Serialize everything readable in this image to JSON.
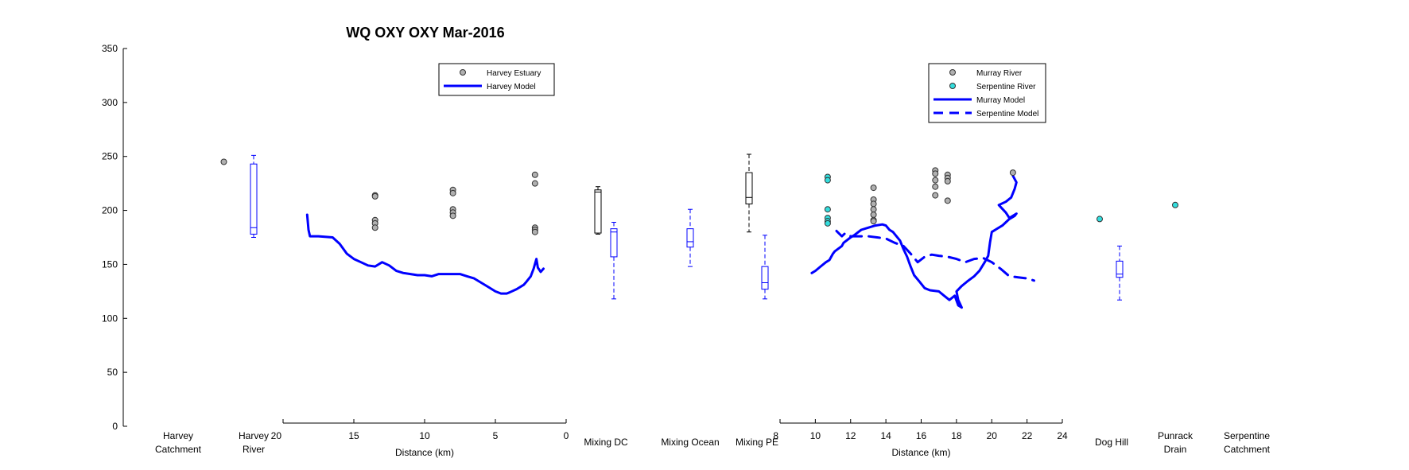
{
  "chart_data": {
    "type": "mixed",
    "title": "WQ OXY OXY Mar-2016",
    "y_axis": {
      "ylim": [
        0,
        350
      ],
      "ticks": [
        0,
        50,
        100,
        150,
        200,
        250,
        300,
        350
      ]
    },
    "categories": [
      {
        "key": "harvey_catchment",
        "label_lines": [
          "Harvey",
          "Catchment"
        ]
      },
      {
        "key": "harvey_river",
        "label_lines": [
          "Harvey",
          "River"
        ]
      },
      {
        "key": "mixing_dc",
        "label_lines": [
          "Mixing DC"
        ]
      },
      {
        "key": "mixing_ocean",
        "label_lines": [
          "Mixing Ocean"
        ]
      },
      {
        "key": "mixing_pe",
        "label_lines": [
          "Mixing PE"
        ]
      },
      {
        "key": "dog_hill",
        "label_lines": [
          "Dog Hill"
        ]
      },
      {
        "key": "punrack_drain",
        "label_lines": [
          "Punrack",
          "Drain"
        ]
      },
      {
        "key": "serpentine_catchment",
        "label_lines": [
          "Serpentine",
          "Catchment"
        ]
      }
    ],
    "category_points": {
      "harvey_river": [
        245
      ],
      "dog_hill": [
        192
      ],
      "punrack_drain": [
        205
      ]
    },
    "boxplots": [
      {
        "category": "harvey_river",
        "color": "#0000ff",
        "min": 175,
        "q1": 178,
        "median": 184,
        "q3": 243,
        "max": 251
      },
      {
        "category": "mixing_dc",
        "color": "#000000",
        "offset": -0.2,
        "min": 178,
        "q1": 179,
        "median": 217,
        "q3": 219,
        "max": 222
      },
      {
        "category": "mixing_dc",
        "color": "#0000ff",
        "offset": 0.2,
        "min": 118,
        "q1": 157,
        "median": 180,
        "q3": 183,
        "max": 189
      },
      {
        "category": "mixing_ocean",
        "color": "#0000ff",
        "min": 148,
        "q1": 166,
        "median": 171,
        "q3": 183,
        "max": 201
      },
      {
        "category": "mixing_pe",
        "color": "#000000",
        "offset": -0.2,
        "min": 180,
        "q1": 206,
        "median": 212,
        "q3": 235,
        "max": 252
      },
      {
        "category": "mixing_pe",
        "color": "#0000ff",
        "offset": 0.2,
        "min": 118,
        "q1": 127,
        "median": 133,
        "q3": 148,
        "max": 177
      },
      {
        "category": "dog_hill",
        "color": "#0000ff",
        "offset": 0.2,
        "min": 117,
        "q1": 138,
        "median": 141,
        "q3": 153,
        "max": 167
      }
    ],
    "left_panel": {
      "xlabel": "Distance (km)",
      "xlim": [
        20,
        0
      ],
      "xticks": [
        20,
        15,
        10,
        5,
        0
      ],
      "legend": [
        {
          "label": "Harvey Estuary",
          "kind": "marker",
          "color": "#b0b0b0"
        },
        {
          "label": "Harvey Model",
          "kind": "line",
          "color": "#0000ff"
        }
      ],
      "harvey_estuary": {
        "x": [
          13.5,
          13.5,
          13.5,
          13.5,
          13.5,
          8,
          8,
          8,
          8,
          8,
          2.2,
          2.2,
          2.2,
          2.2,
          2.2
        ],
        "y": [
          214,
          213,
          191,
          188,
          184,
          219,
          216,
          201,
          198,
          195,
          233,
          225,
          184,
          182,
          180
        ]
      },
      "harvey_model": {
        "x": [
          18.3,
          18.2,
          18.1,
          17.5,
          16.5,
          16.0,
          15.5,
          15.0,
          14.5,
          14.0,
          13.5,
          13.0,
          12.5,
          12.0,
          11.5,
          11.0,
          10.5,
          10.0,
          9.5,
          9.0,
          8.5,
          8.0,
          7.5,
          7.0,
          6.5,
          6.0,
          5.5,
          5.0,
          4.6,
          4.2,
          4.0,
          3.5,
          3.0,
          2.8,
          2.5,
          2.3,
          2.1,
          2.0,
          1.8,
          1.6
        ],
        "y": [
          196,
          182,
          176,
          176,
          175,
          169,
          160,
          155,
          152,
          149,
          148,
          152,
          149,
          144,
          142,
          141,
          140,
          140,
          139,
          141,
          141,
          141,
          141,
          139,
          137,
          133,
          129,
          125,
          123,
          123,
          124,
          127,
          131,
          134,
          139,
          146,
          155,
          147,
          143,
          146
        ]
      }
    },
    "right_panel": {
      "xlabel": "Distance (km)",
      "xlim": [
        8,
        24
      ],
      "xticks": [
        8,
        10,
        12,
        14,
        16,
        18,
        20,
        22,
        24
      ],
      "legend": [
        {
          "label": "Murray River",
          "kind": "marker",
          "color": "#b0b0b0"
        },
        {
          "label": "Serpentine River",
          "kind": "marker",
          "color": "#33dddd"
        },
        {
          "label": "Murray Model",
          "kind": "line",
          "color": "#0000ff"
        },
        {
          "label": "Serpentine Model",
          "kind": "dashed",
          "color": "#0000ff"
        }
      ],
      "murray_river": {
        "x": [
          13.3,
          13.3,
          13.3,
          13.3,
          13.3,
          13.3,
          13.3,
          16.8,
          16.8,
          16.8,
          16.8,
          16.8,
          17.5,
          17.5,
          17.5,
          17.5,
          21.2
        ],
        "y": [
          221,
          210,
          206,
          201,
          196,
          191,
          190,
          237,
          234,
          228,
          222,
          214,
          233,
          230,
          227,
          209,
          235
        ]
      },
      "serpentine_river": {
        "x": [
          10.7,
          10.7,
          10.7,
          10.7,
          10.7,
          10.7
        ],
        "y": [
          231,
          228,
          201,
          193,
          190,
          188
        ]
      },
      "murray_model": {
        "x": [
          9.8,
          10.0,
          10.3,
          10.6,
          10.8,
          11.0,
          11.1,
          11.5,
          11.6,
          12.0,
          12.2,
          12.6,
          13.0,
          13.4,
          13.8,
          14.0,
          14.2,
          14.4,
          14.6,
          14.8,
          15.0,
          15.2,
          15.4,
          15.6,
          15.9,
          16.2,
          16.5,
          17.0,
          17.3,
          17.6,
          17.9,
          18.1,
          18.3,
          18.1,
          18.0,
          18.3,
          18.6,
          19.0,
          19.3,
          19.6,
          19.8,
          19.9,
          20.0,
          20.3,
          20.6,
          21.0,
          21.3,
          21.4,
          21.0,
          20.8,
          20.4,
          20.8,
          21.1,
          21.3,
          21.4,
          21.2
        ],
        "y": [
          142,
          144,
          148,
          152,
          154,
          160,
          162,
          167,
          170,
          175,
          177,
          182,
          184,
          186,
          187,
          186,
          182,
          180,
          176,
          172,
          164,
          157,
          148,
          140,
          134,
          128,
          126,
          125,
          121,
          117,
          121,
          112,
          110,
          117,
          125,
          130,
          134,
          139,
          144,
          152,
          158,
          170,
          180,
          183,
          186,
          192,
          195,
          197,
          193,
          198,
          205,
          208,
          212,
          220,
          226,
          232
        ]
      },
      "serpentine_model": {
        "x": [
          11.2,
          11.5,
          11.7,
          12.0,
          12.5,
          13.0,
          13.5,
          14.0,
          14.5,
          15.0,
          15.4,
          15.8,
          16.2,
          16.6,
          17.0,
          17.5,
          18.0,
          18.5,
          19.0,
          19.5,
          20.0,
          20.5,
          21.0,
          21.5,
          22.0,
          22.4
        ],
        "y": [
          181,
          176,
          179,
          176,
          176,
          176,
          175,
          174,
          170,
          167,
          160,
          152,
          157,
          159,
          158,
          157,
          155,
          152,
          155,
          156,
          152,
          146,
          139,
          138,
          137,
          135
        ]
      }
    },
    "colors": {
      "blue": "#0000ff",
      "black": "#000000",
      "gray_marker": "#b0b0b0",
      "cyan_marker": "#33dddd"
    }
  }
}
